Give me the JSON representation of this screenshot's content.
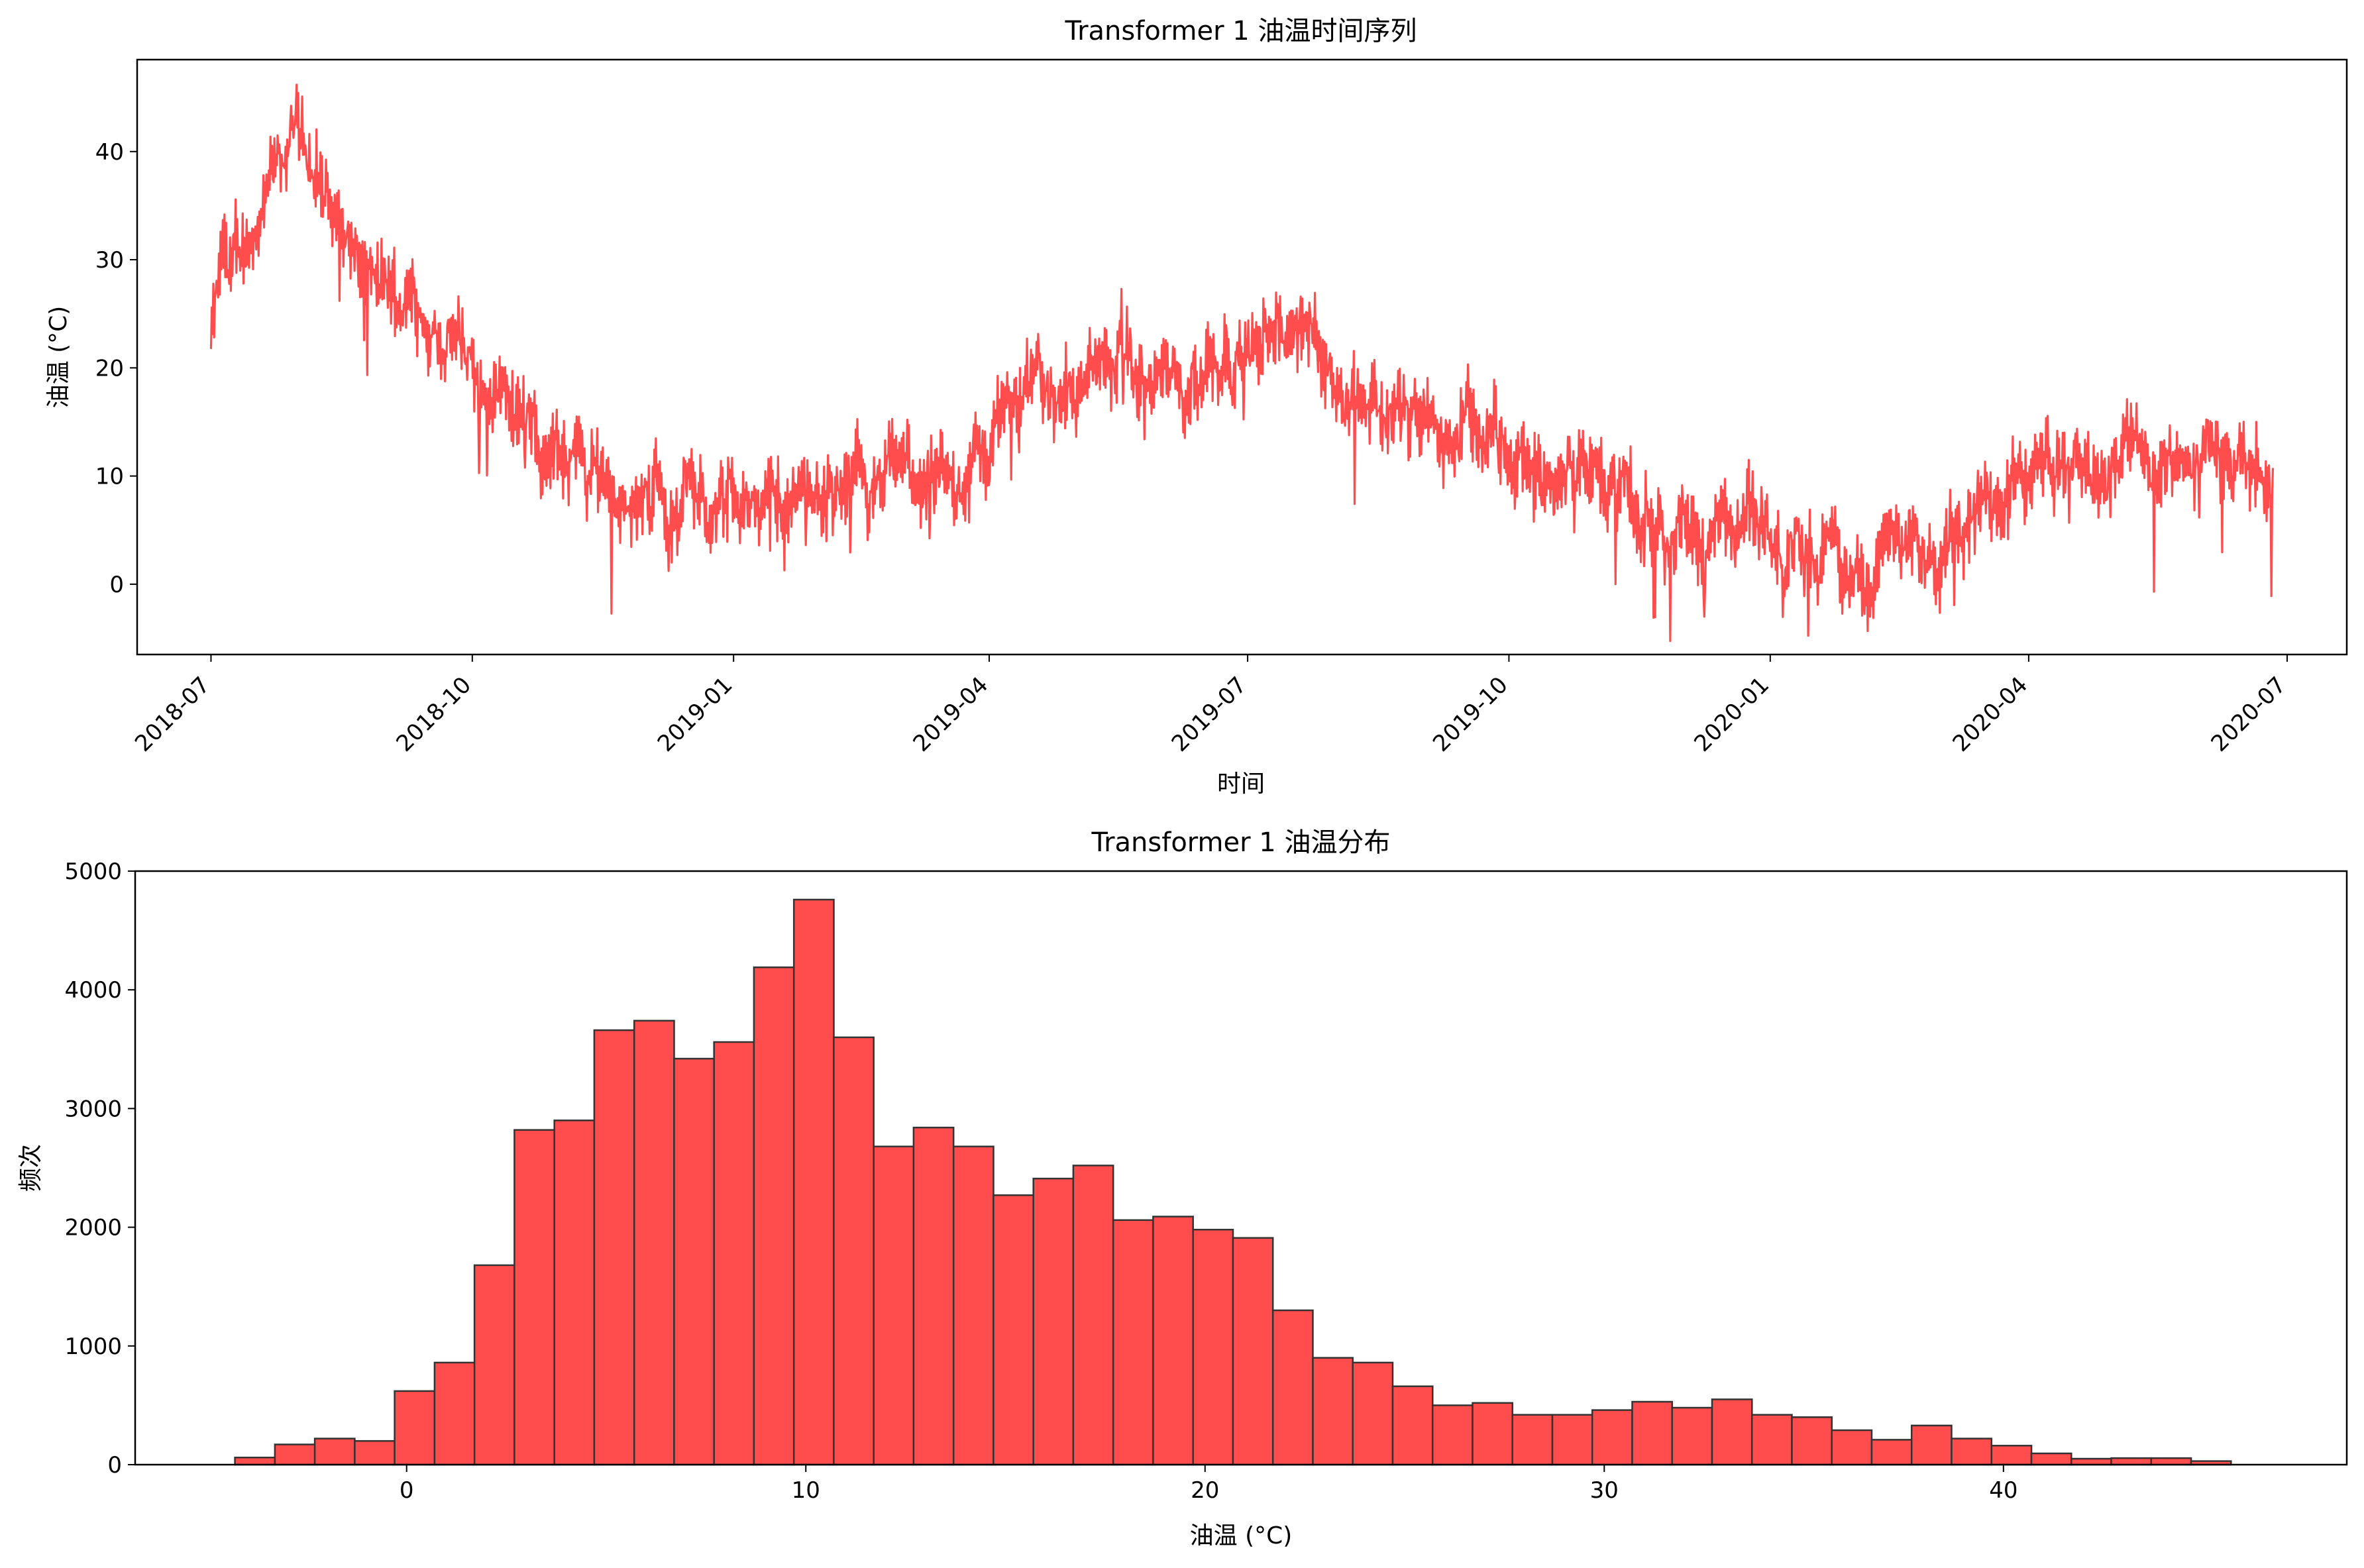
{
  "chart_data": [
    {
      "type": "line",
      "title": "Transformer 1 油温时间序列",
      "xlabel": "时间",
      "ylabel": "油温 (°C)",
      "color": "#ff4d4d",
      "x_range": [
        "2018-06-05",
        "2020-07-22"
      ],
      "ylim": [
        -6.5,
        48.5
      ],
      "x_ticks": [
        "2018-07",
        "2018-10",
        "2019-01",
        "2019-04",
        "2019-07",
        "2019-10",
        "2020-01",
        "2020-04",
        "2020-07"
      ],
      "y_ticks": [
        0,
        10,
        20,
        30,
        40
      ],
      "grid": false,
      "series": [
        {
          "x": [
            "2018-07-01",
            "2018-07-05",
            "2018-07-10",
            "2018-07-15",
            "2018-07-20",
            "2018-07-25",
            "2018-07-31",
            "2018-08-05",
            "2018-08-10",
            "2018-08-15",
            "2018-08-20",
            "2018-08-25",
            "2018-08-31",
            "2018-09-05",
            "2018-09-10",
            "2018-09-15",
            "2018-09-20",
            "2018-09-25",
            "2018-09-30",
            "2018-10-05",
            "2018-10-10",
            "2018-10-15",
            "2018-10-20",
            "2018-10-25",
            "2018-10-31",
            "2018-11-05",
            "2018-11-10",
            "2018-11-15",
            "2018-11-20",
            "2018-11-25",
            "2018-11-30",
            "2018-12-05",
            "2018-12-10",
            "2018-12-15",
            "2018-12-20",
            "2018-12-25",
            "2018-12-31",
            "2019-01-05",
            "2019-01-10",
            "2019-01-15",
            "2019-01-20",
            "2019-01-25",
            "2019-01-31",
            "2019-02-05",
            "2019-02-10",
            "2019-02-15",
            "2019-02-20",
            "2019-02-25",
            "2019-02-28",
            "2019-03-05",
            "2019-03-10",
            "2019-03-15",
            "2019-03-20",
            "2019-03-25",
            "2019-03-31",
            "2019-04-05",
            "2019-04-10",
            "2019-04-15",
            "2019-04-20",
            "2019-04-25",
            "2019-04-30",
            "2019-05-05",
            "2019-05-10",
            "2019-05-15",
            "2019-05-20",
            "2019-05-25",
            "2019-05-31",
            "2019-06-05",
            "2019-06-10",
            "2019-06-15",
            "2019-06-20",
            "2019-06-25",
            "2019-06-30",
            "2019-07-05",
            "2019-07-10",
            "2019-07-15",
            "2019-07-20",
            "2019-07-25",
            "2019-07-31",
            "2019-08-05",
            "2019-08-10",
            "2019-08-15",
            "2019-08-20",
            "2019-08-25",
            "2019-08-31",
            "2019-09-05",
            "2019-09-10",
            "2019-09-15",
            "2019-09-20",
            "2019-09-25",
            "2019-09-30",
            "2019-10-05",
            "2019-10-10",
            "2019-10-15",
            "2019-10-20",
            "2019-10-25",
            "2019-10-31",
            "2019-11-05",
            "2019-11-10",
            "2019-11-15",
            "2019-11-20",
            "2019-11-25",
            "2019-11-30",
            "2019-12-05",
            "2019-12-10",
            "2019-12-15",
            "2019-12-20",
            "2019-12-25",
            "2019-12-31",
            "2020-01-05",
            "2020-01-10",
            "2020-01-15",
            "2020-01-20",
            "2020-01-25",
            "2020-01-31",
            "2020-02-05",
            "2020-02-10",
            "2020-02-15",
            "2020-02-20",
            "2020-02-25",
            "2020-02-29",
            "2020-03-05",
            "2020-03-10",
            "2020-03-15",
            "2020-03-20",
            "2020-03-25",
            "2020-03-31",
            "2020-04-05",
            "2020-04-10",
            "2020-04-15",
            "2020-04-20",
            "2020-04-25",
            "2020-04-30",
            "2020-05-05",
            "2020-05-10",
            "2020-05-15",
            "2020-05-20",
            "2020-05-25",
            "2020-05-31",
            "2020-06-05",
            "2020-06-10",
            "2020-06-15",
            "2020-06-20",
            "2020-06-26"
          ],
          "y": [
            22,
            30,
            29,
            33,
            35,
            38,
            42,
            40,
            36,
            34,
            31,
            28,
            27,
            26,
            27,
            25,
            23,
            22,
            21,
            18,
            19,
            17,
            15,
            13,
            12,
            13,
            10,
            11,
            9,
            8,
            7,
            10,
            5,
            9,
            8,
            7,
            8,
            8,
            7,
            8,
            7,
            9,
            8,
            7,
            8,
            9,
            7,
            10,
            11,
            10,
            8,
            9,
            9,
            11,
            12,
            16,
            18,
            19,
            18,
            17,
            19,
            19,
            21,
            20,
            21,
            18,
            19,
            18,
            20,
            20,
            21,
            22,
            21,
            22,
            23,
            23,
            24,
            22,
            20,
            19,
            18,
            17,
            16,
            16,
            14,
            14,
            13,
            15,
            14,
            13,
            12,
            11,
            10,
            9,
            10,
            11,
            10,
            9,
            9,
            6,
            6,
            6,
            5,
            5,
            4,
            5,
            4,
            6,
            5,
            3,
            3,
            2,
            4,
            2,
            0,
            1,
            3,
            3,
            3,
            4,
            4,
            6,
            6,
            6,
            8,
            10,
            11,
            11,
            10,
            10,
            12,
            11,
            12,
            13,
            14,
            10,
            10,
            10,
            11,
            11,
            10,
            10,
            11,
            10
          ]
        }
      ]
    },
    {
      "type": "bar",
      "title": "Transformer 1 油温分布",
      "xlabel": "油温 (°C)",
      "ylabel": "频次",
      "color": "#ff4d4d",
      "edgecolor": "#333333",
      "xlim": [
        -6.8,
        48.6
      ],
      "ylim": [
        0,
        5000
      ],
      "x_ticks": [
        0,
        10,
        20,
        30,
        40
      ],
      "y_ticks": [
        0,
        1000,
        2000,
        3000,
        4000,
        5000
      ],
      "grid": false,
      "bin_start": -4.3,
      "bin_width": 1.0,
      "values": [
        60,
        170,
        220,
        200,
        620,
        860,
        1680,
        2820,
        2900,
        3660,
        3740,
        3420,
        3560,
        4190,
        4760,
        3600,
        2680,
        2840,
        2680,
        2270,
        2410,
        2520,
        2060,
        2090,
        1980,
        1910,
        1300,
        900,
        860,
        660,
        500,
        520,
        420,
        420,
        460,
        530,
        480,
        550,
        420,
        400,
        290,
        210,
        330,
        220,
        160,
        95,
        50,
        55,
        55,
        30
      ]
    }
  ]
}
